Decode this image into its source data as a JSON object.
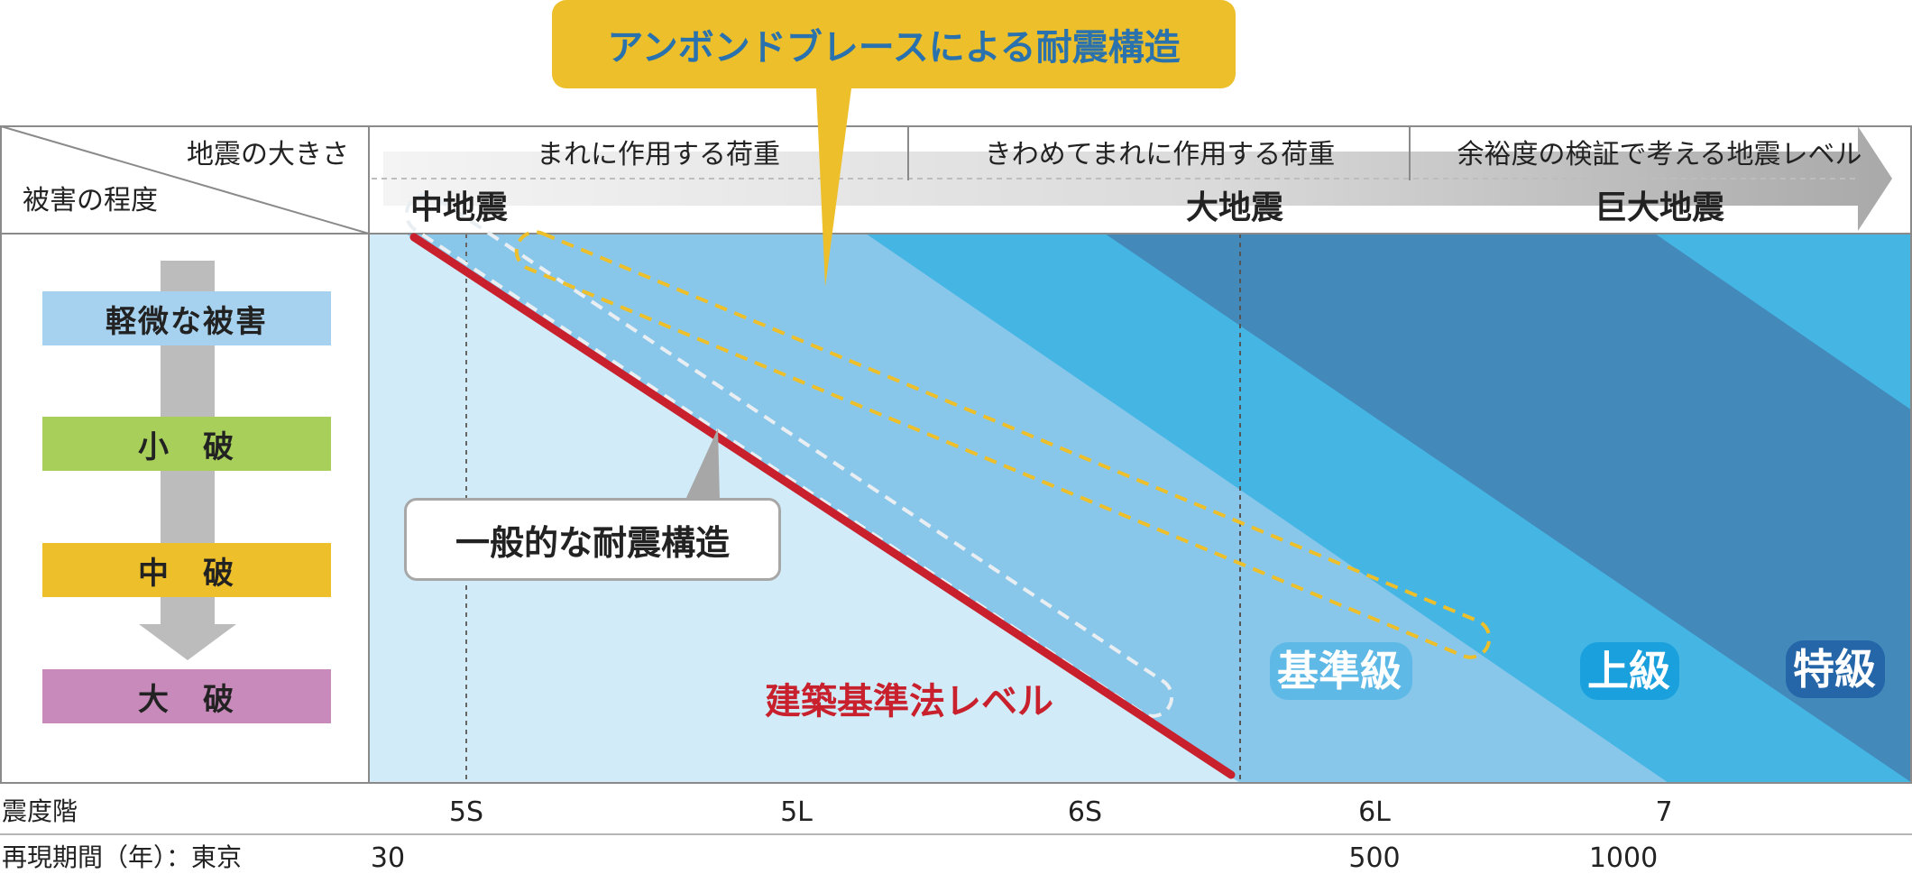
{
  "callout_top": "アンボンドブレースによる耐震構造",
  "callout_general": "一般的な耐震構造",
  "header": {
    "earthquake_size": "地震の大きさ",
    "damage_degree": "被害の程度",
    "load_1": "まれに作用する荷重",
    "load_2": "きわめてまれに作用する荷重",
    "load_3": "余裕度の検証で考える地震レベル",
    "eq_mid": "中地震",
    "eq_large": "大地震",
    "eq_huge": "巨大地震"
  },
  "damage_levels": [
    {
      "label": "軽微な被害",
      "color": "#a6d2f0"
    },
    {
      "label": "小　破",
      "color": "#a7cf5a"
    },
    {
      "label": "中　破",
      "color": "#edbf2a"
    },
    {
      "label": "大　破",
      "color": "#c78aba"
    }
  ],
  "grades": {
    "standard": "基準級",
    "upper": "上級",
    "special": "特級"
  },
  "law_level": "建築基準法レベル",
  "scale_rows": {
    "intensity_label": "震度階",
    "intensity_values": [
      "5S",
      "5L",
      "6S",
      "6L",
      "7"
    ],
    "return_label": "再現期間（年）：東京",
    "return_values": [
      "30",
      "500",
      "1000"
    ]
  },
  "colors": {
    "band_lightest": "#d2ebf8",
    "band_light": "#89c7ea",
    "band_mid": "#45b6e4",
    "band_dark": "#438abb",
    "law_line": "#c8202c",
    "callout_yellow": "#edbf2a",
    "callout_text_blue": "#2a72ad",
    "grade_glow_standard": "#5fb9e6",
    "grade_glow_upper": "#1aa0dc",
    "grade_glow_special": "#2466a8"
  }
}
